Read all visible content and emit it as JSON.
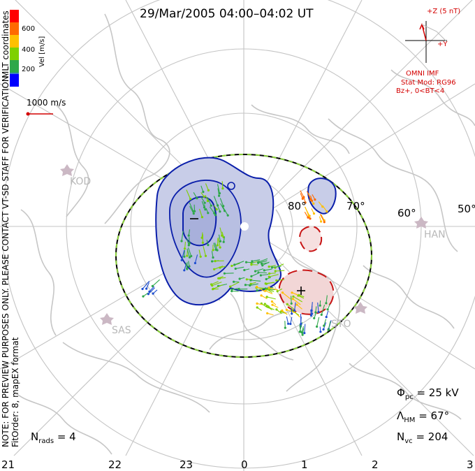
{
  "title": "29/Mar/2005 04:00–04:02 UT",
  "colorbar": {
    "label": "Vel [m/s]",
    "ticks": [
      "600",
      "400",
      "200"
    ],
    "colors": [
      "#ff0000",
      "#ff6a00",
      "#ffc000",
      "#7fd000",
      "#2ea84a",
      "#3b7fbf",
      "#0000ff"
    ]
  },
  "coords_label": "MLT coordinates",
  "note_label": "NOTE: FOR PREVIEW PURPOSES ONLY. PLEASE CONTACT VT-SD STAFF FOR VERIFICATION.",
  "fit_label": "FitOrder: 8, mapEX format",
  "scale_vector": "1000 m/s",
  "imf": {
    "z_label": "+Z (5 nT)",
    "y_label": "+Y",
    "source": "OMNI IMF",
    "model": "Stat Mod: RG96",
    "condition": "Bz+, 0<BT<4"
  },
  "latitudes": [
    "80°",
    "70°",
    "60°",
    "50°"
  ],
  "stations": [
    "KOD",
    "HAN",
    "SAS",
    "STO"
  ],
  "potential_marks": {
    "min": "–",
    "max": "+"
  },
  "stats": {
    "phi_pc": {
      "symbol": "Φ",
      "sub": "pc",
      "value": "= 25 kV"
    },
    "lambda_hm": {
      "symbol": "Λ",
      "sub": "HM",
      "value": "= 67°"
    },
    "n_vc": {
      "symbol": "N",
      "sub": "vc",
      "value": "= 204"
    },
    "n_rads": {
      "symbol": "N",
      "sub": "rads",
      "value": "= 4"
    }
  },
  "mlt_ticks": [
    "21",
    "22",
    "23",
    "0",
    "1",
    "2",
    "3"
  ],
  "colors": {
    "negative_contour": "#0a1eaa",
    "positive_contour": "#c81414",
    "negative_fill": "#c8cde8",
    "positive_fill": "#f2d6d6",
    "boundary_dash": "#8cd23c",
    "grid": "#c4c4c4",
    "coast": "#c4c4c4"
  }
}
